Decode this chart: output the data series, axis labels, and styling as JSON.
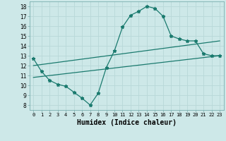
{
  "title": "",
  "xlabel": "Humidex (Indice chaleur)",
  "ylabel": "",
  "background_color": "#cde8e8",
  "grid_color": "#b0d0d0",
  "line_color": "#1a7a6e",
  "xlim": [
    -0.5,
    23.5
  ],
  "ylim": [
    7.5,
    18.5
  ],
  "xticks": [
    0,
    1,
    2,
    3,
    4,
    5,
    6,
    7,
    8,
    9,
    10,
    11,
    12,
    13,
    14,
    15,
    16,
    17,
    18,
    19,
    20,
    21,
    22,
    23
  ],
  "yticks": [
    8,
    9,
    10,
    11,
    12,
    13,
    14,
    15,
    16,
    17,
    18
  ],
  "curve1_x": [
    0,
    1,
    2,
    3,
    4,
    5,
    6,
    7,
    8,
    9,
    10,
    11,
    12,
    13,
    14,
    15,
    16,
    17,
    18,
    19,
    20,
    21,
    22,
    23
  ],
  "curve1_y": [
    12.7,
    11.4,
    10.5,
    10.1,
    9.9,
    9.3,
    8.7,
    8.0,
    9.2,
    11.8,
    13.5,
    15.9,
    17.1,
    17.5,
    18.0,
    17.8,
    17.0,
    15.0,
    14.7,
    14.5,
    14.5,
    13.2,
    13.0,
    13.0
  ],
  "curve2_x": [
    0,
    23
  ],
  "curve2_y": [
    10.8,
    13.0
  ],
  "curve3_x": [
    0,
    23
  ],
  "curve3_y": [
    12.0,
    14.5
  ]
}
